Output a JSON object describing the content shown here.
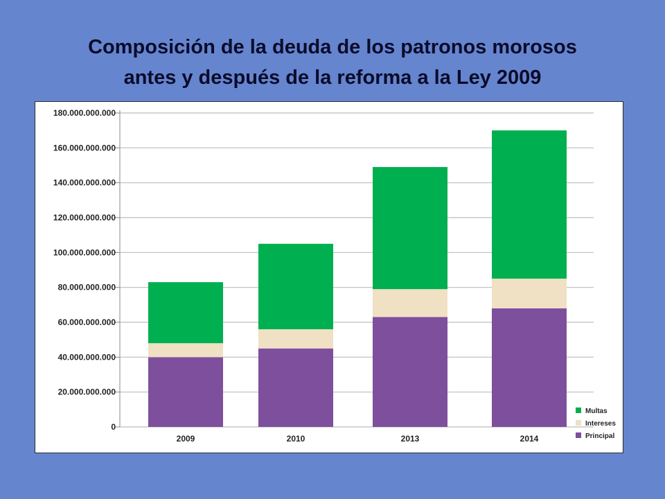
{
  "title_lines": [
    "Composición de la deuda de los patronos morosos",
    "antes y después de la reforma a la Ley 2009"
  ],
  "chart_data": {
    "type": "bar",
    "stacked": true,
    "title": "",
    "xlabel": "",
    "ylabel": "",
    "categories": [
      "2009",
      "2010",
      "2013",
      "2014"
    ],
    "ylim": [
      0,
      180000000000
    ],
    "yticks": [
      0,
      20000000000,
      40000000000,
      60000000000,
      80000000000,
      100000000000,
      120000000000,
      140000000000,
      160000000000,
      180000000000
    ],
    "ytick_labels": [
      "0",
      "20.000.000.000",
      "40.000.000.000",
      "60.000.000.000",
      "80.000.000.000",
      "100.000.000.000",
      "120.000.000.000",
      "140.000.000.000",
      "160.000.000.000",
      "180.000.000.000"
    ],
    "grid": true,
    "legend_position": "bottom-right",
    "series": [
      {
        "name": "Principal",
        "color": "#7e4f9c",
        "values": [
          40000000000,
          45000000000,
          63000000000,
          68000000000
        ]
      },
      {
        "name": "Intereses",
        "color": "#f0e0c4",
        "values": [
          8000000000,
          11000000000,
          16000000000,
          17000000000
        ]
      },
      {
        "name": "Multas",
        "color": "#00af50",
        "values": [
          35000000000,
          49000000000,
          70000000000,
          85000000000
        ]
      }
    ],
    "legend_order": [
      "Multas",
      "Intereses",
      "Principal"
    ]
  }
}
